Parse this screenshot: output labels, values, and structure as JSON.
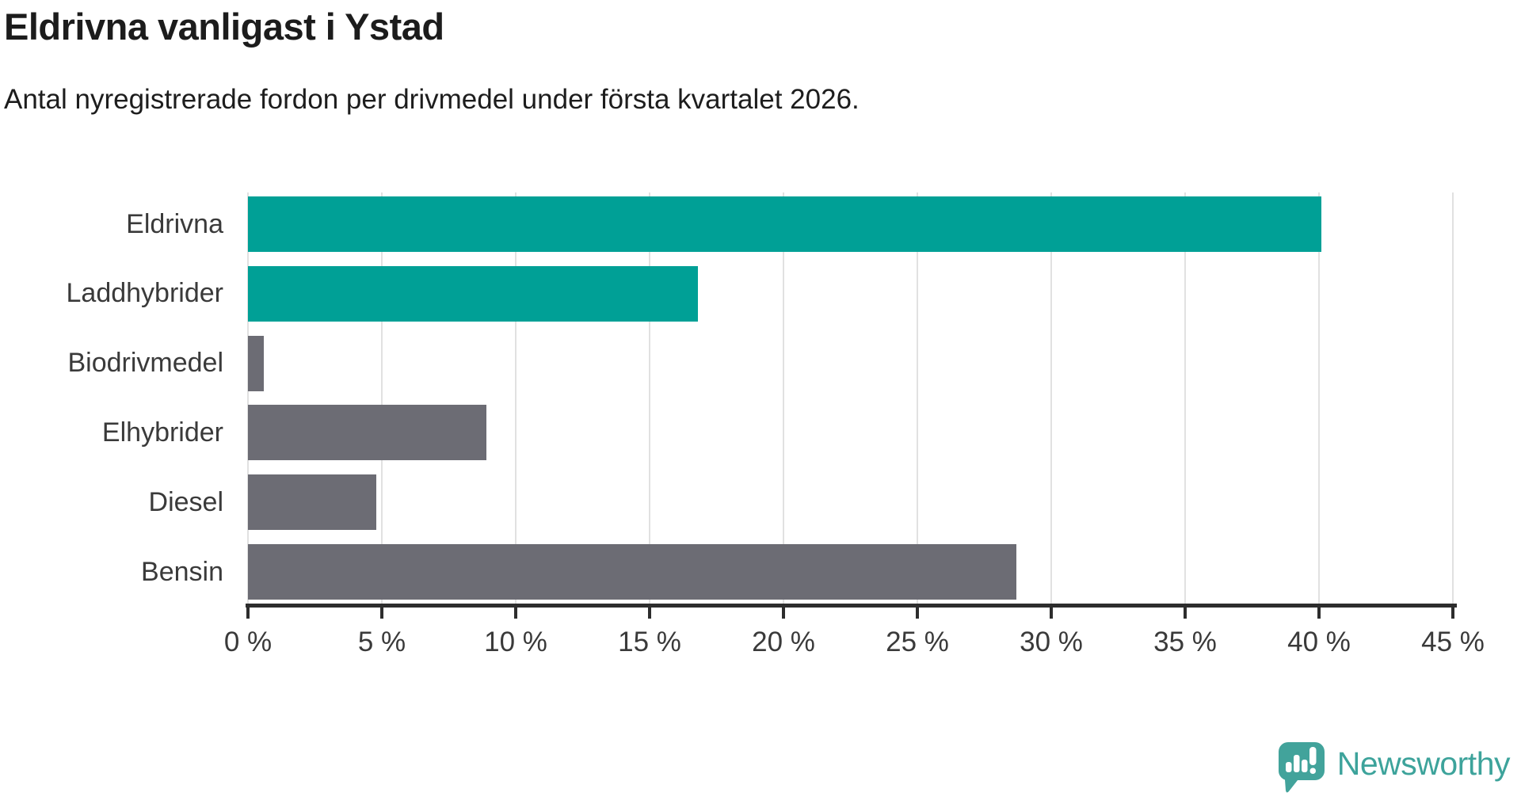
{
  "title": "Eldrivna vanligast i Ystad",
  "subtitle": "Antal nyregistrerade fordon per drivmedel under första kvartalet 2026.",
  "chart_data": {
    "type": "bar",
    "orientation": "horizontal",
    "title": "Eldrivna vanligast i Ystad",
    "subtitle": "Antal nyregistrerade fordon per drivmedel under första kvartalet 2026.",
    "categories": [
      "Eldrivna",
      "Laddhybrider",
      "Biodrivmedel",
      "Elhybrider",
      "Diesel",
      "Bensin"
    ],
    "values": [
      40.1,
      16.8,
      0.6,
      8.9,
      4.8,
      28.7
    ],
    "unit": "%",
    "xlim": [
      0,
      45
    ],
    "x_ticks": [
      0,
      5,
      10,
      15,
      20,
      25,
      30,
      35,
      40,
      45
    ],
    "x_tick_labels": [
      "0 %",
      "5 %",
      "10 %",
      "15 %",
      "20 %",
      "25 %",
      "30 %",
      "35 %",
      "40 %",
      "45 %"
    ],
    "bar_colors": [
      "#00a096",
      "#00a096",
      "#6c6c74",
      "#6c6c74",
      "#6c6c74",
      "#6c6c74"
    ],
    "highlight_color": "#00a096",
    "default_color": "#6c6c74",
    "grid": true,
    "gridline_color": "#e1e1e1",
    "axis_color": "#2d2d2d",
    "legend": "none"
  },
  "branding": {
    "logo_text": "Newsworthy",
    "logo_color": "#42a39b",
    "logo_icon": "speech-bubble-bar-chart-exclamation"
  }
}
